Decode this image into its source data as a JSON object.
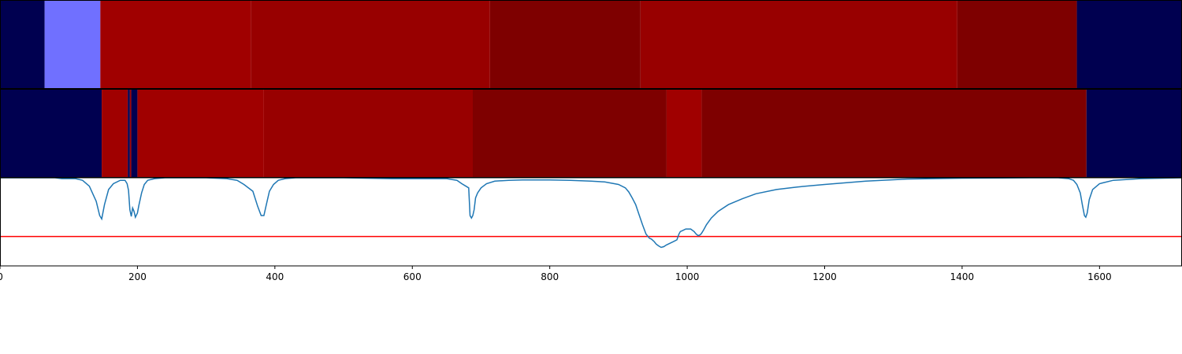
{
  "chart_data": {
    "type": "heatmap",
    "x_range": [
      0,
      1720
    ],
    "x_ticks": [
      "0",
      "200",
      "400",
      "600",
      "800",
      "1000",
      "1200",
      "1400",
      "1600"
    ],
    "x_tick_values": [
      0,
      200,
      400,
      600,
      800,
      1000,
      1200,
      1400,
      1600
    ],
    "colormap": {
      "0": "#000050",
      "1": "#7070ff",
      "2": "#a00000",
      "3": "#980000",
      "4": "#7e0000"
    },
    "tracks": [
      {
        "segments": [
          {
            "start": 0,
            "end": 65,
            "level": 0
          },
          {
            "start": 65,
            "end": 146,
            "level": 1
          },
          {
            "start": 146,
            "end": 365,
            "level": 2
          },
          {
            "start": 365,
            "end": 713,
            "level": 3
          },
          {
            "start": 713,
            "end": 932,
            "level": 4
          },
          {
            "start": 932,
            "end": 1393,
            "level": 3
          },
          {
            "start": 1393,
            "end": 1567,
            "level": 4
          },
          {
            "start": 1567,
            "end": 1720,
            "level": 0
          }
        ]
      },
      {
        "segments": [
          {
            "start": 0,
            "end": 148,
            "level": 0
          },
          {
            "start": 148,
            "end": 186,
            "level": 2
          },
          {
            "start": 186,
            "end": 189,
            "level": 0
          },
          {
            "start": 189,
            "end": 191,
            "level": 2
          },
          {
            "start": 191,
            "end": 200,
            "level": 0
          },
          {
            "start": 200,
            "end": 384,
            "level": 2
          },
          {
            "start": 384,
            "end": 688,
            "level": 3
          },
          {
            "start": 688,
            "end": 970,
            "level": 4
          },
          {
            "start": 970,
            "end": 1021,
            "level": 2
          },
          {
            "start": 1021,
            "end": 1581,
            "level": 4
          },
          {
            "start": 1581,
            "end": 1720,
            "level": 0
          }
        ]
      }
    ],
    "line_panel": {
      "y_range": [
        -0.05,
        1.0
      ],
      "threshold": 0.3,
      "threshold_color": "#ff0000",
      "line_color": "#1f77b4",
      "x": [
        0,
        80,
        90,
        110,
        120,
        130,
        140,
        145,
        148,
        152,
        158,
        165,
        175,
        182,
        185,
        187,
        189,
        191,
        193,
        195,
        197,
        200,
        202,
        206,
        210,
        215,
        225,
        240,
        300,
        330,
        345,
        355,
        368,
        375,
        380,
        384,
        387,
        392,
        398,
        405,
        415,
        430,
        500,
        570,
        650,
        665,
        672,
        678,
        682,
        684,
        686,
        688,
        690,
        692,
        695,
        700,
        708,
        720,
        740,
        760,
        800,
        830,
        860,
        880,
        900,
        910,
        915,
        920,
        925,
        930,
        935,
        940,
        945,
        948,
        952,
        955,
        958,
        962,
        966,
        970,
        975,
        980,
        985,
        988,
        990,
        993,
        998,
        1005,
        1010,
        1013,
        1016,
        1019,
        1021,
        1024,
        1028,
        1035,
        1045,
        1060,
        1080,
        1100,
        1130,
        1160,
        1200,
        1260,
        1320,
        1400,
        1500,
        1540,
        1555,
        1562,
        1567,
        1572,
        1575,
        1578,
        1580,
        1582,
        1585,
        1590,
        1600,
        1620,
        1660,
        1720
      ],
      "y": [
        1.0,
        1.0,
        0.99,
        0.99,
        0.97,
        0.9,
        0.72,
        0.55,
        0.51,
        0.68,
        0.86,
        0.93,
        0.97,
        0.97,
        0.93,
        0.85,
        0.62,
        0.54,
        0.64,
        0.6,
        0.53,
        0.58,
        0.67,
        0.82,
        0.92,
        0.97,
        0.99,
        1.0,
        1.0,
        0.99,
        0.97,
        0.92,
        0.84,
        0.66,
        0.55,
        0.55,
        0.66,
        0.84,
        0.92,
        0.97,
        0.99,
        1.0,
        1.0,
        0.99,
        0.99,
        0.97,
        0.93,
        0.9,
        0.88,
        0.55,
        0.52,
        0.55,
        0.62,
        0.76,
        0.82,
        0.88,
        0.93,
        0.96,
        0.97,
        0.975,
        0.975,
        0.97,
        0.96,
        0.95,
        0.92,
        0.88,
        0.83,
        0.76,
        0.68,
        0.56,
        0.44,
        0.33,
        0.28,
        0.27,
        0.24,
        0.21,
        0.19,
        0.17,
        0.18,
        0.2,
        0.22,
        0.24,
        0.26,
        0.33,
        0.36,
        0.37,
        0.39,
        0.39,
        0.36,
        0.33,
        0.31,
        0.32,
        0.34,
        0.38,
        0.44,
        0.52,
        0.6,
        0.68,
        0.75,
        0.81,
        0.86,
        0.89,
        0.92,
        0.96,
        0.985,
        0.995,
        1.0,
        1.0,
        0.99,
        0.97,
        0.92,
        0.82,
        0.68,
        0.55,
        0.53,
        0.58,
        0.74,
        0.86,
        0.93,
        0.97,
        0.99,
        1.0,
        1.0
      ]
    }
  }
}
